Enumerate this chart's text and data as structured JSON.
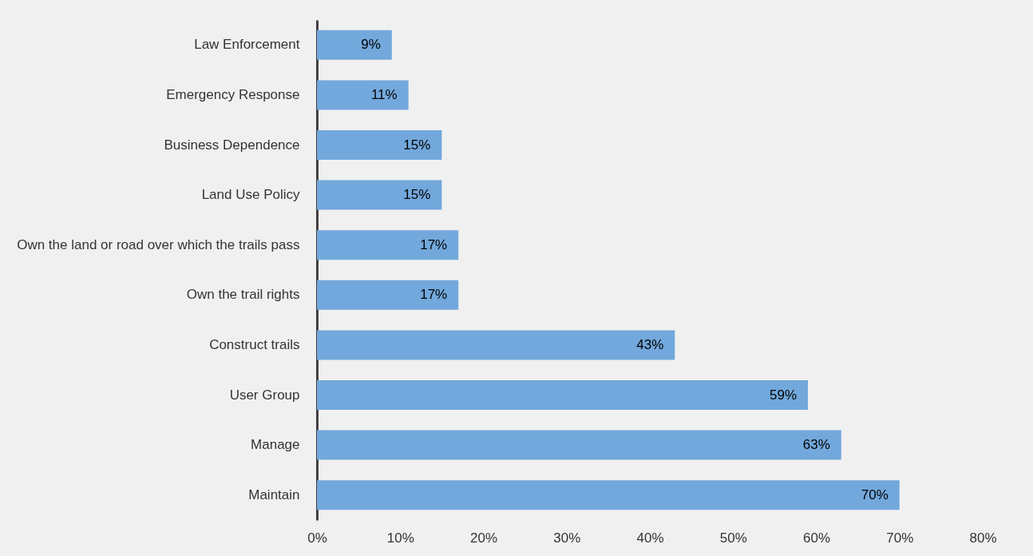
{
  "chart_data": {
    "type": "bar",
    "orientation": "horizontal",
    "categories": [
      "Law Enforcement",
      "Emergency Response",
      "Business Dependence",
      "Land Use Policy",
      "Own the land or road over which the trails pass",
      "Own the trail rights",
      "Construct trails",
      "User Group",
      "Manage",
      "Maintain"
    ],
    "values": [
      9,
      11,
      15,
      15,
      17,
      17,
      43,
      59,
      63,
      70
    ],
    "value_labels": [
      "9%",
      "11%",
      "15%",
      "15%",
      "17%",
      "17%",
      "43%",
      "59%",
      "63%",
      "70%"
    ],
    "color": "#72a8dc",
    "xlim": [
      0,
      80
    ],
    "xticks": [
      {
        "value": 0,
        "label": "0%"
      },
      {
        "value": 10,
        "label": "10%"
      },
      {
        "value": 20,
        "label": "20%"
      },
      {
        "value": 30,
        "label": "30%"
      },
      {
        "value": 40,
        "label": "40%"
      },
      {
        "value": 50,
        "label": "50%"
      },
      {
        "value": 60,
        "label": "60%"
      },
      {
        "value": 70,
        "label": "70%"
      },
      {
        "value": 80,
        "label": "80%"
      }
    ],
    "grid": false
  }
}
